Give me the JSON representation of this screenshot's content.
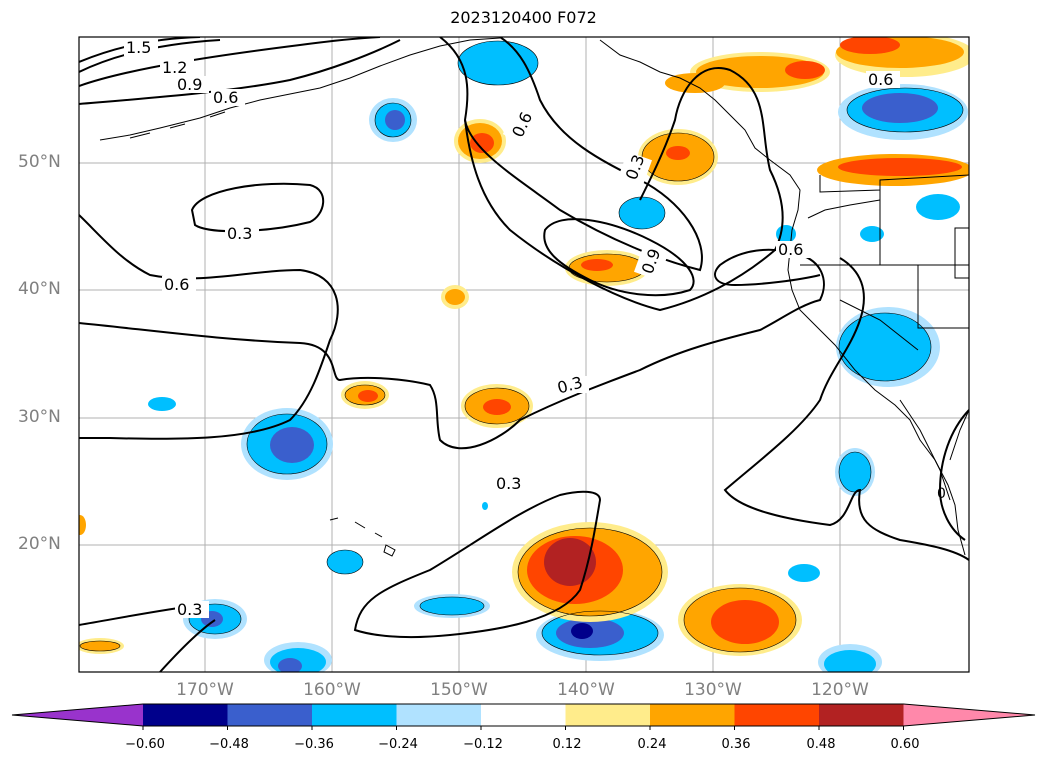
{
  "title": "2023120400 F072",
  "lat_labels": [
    "50°N",
    "40°N",
    "30°N",
    "20°N"
  ],
  "lon_labels": [
    "170°W",
    "160°W",
    "150°W",
    "140°W",
    "130°W",
    "120°W"
  ],
  "contour_labels": [
    "1.5",
    "1.2",
    "0.9",
    "0.6",
    "0.6",
    "0.3",
    "0.6",
    "0.3",
    "0.9",
    "0.6",
    "0.3",
    "0.3",
    "0.3",
    "0.6",
    "0"
  ],
  "colorbar": {
    "ticks": [
      "−0.60",
      "−0.48",
      "−0.36",
      "−0.24",
      "−0.12",
      "0.12",
      "0.24",
      "0.36",
      "0.48",
      "0.60"
    ],
    "colors": [
      "#9933cc",
      "#00008b",
      "#3a5fcd",
      "#00bfff",
      "#b0e2ff",
      "#ffffff",
      "#ffec8b",
      "#ffa500",
      "#ff4500",
      "#b22222",
      "#ff88aa"
    ]
  }
}
